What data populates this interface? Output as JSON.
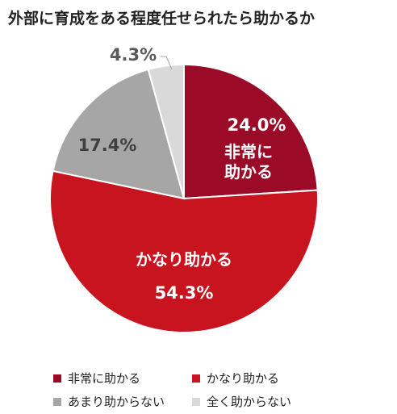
{
  "chart_data": {
    "type": "pie",
    "title": "外部に育成をある程度任せられたら助かるか",
    "categories": [
      "非常に助かる",
      "かなり助かる",
      "あまり助からない",
      "全く助からない"
    ],
    "values": [
      24.0,
      54.3,
      17.4,
      4.3
    ],
    "value_labels": [
      "24.0%",
      "54.3%",
      "17.4%",
      "4.3%"
    ],
    "colors": [
      "#9b0a27",
      "#c8141e",
      "#a6a6a6",
      "#d9d9d9"
    ],
    "legend": "bottom"
  }
}
